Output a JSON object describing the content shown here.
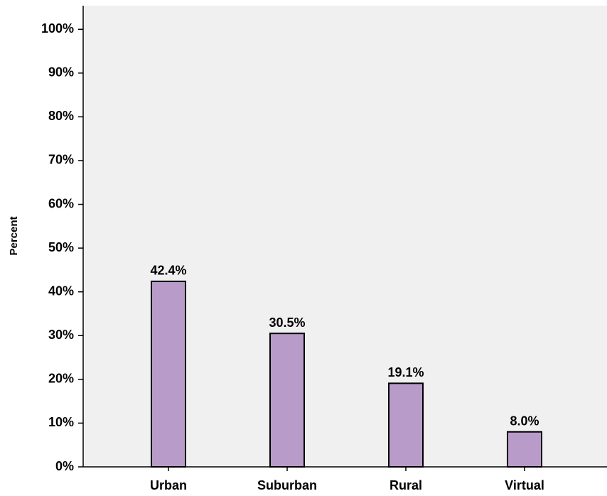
{
  "chart_data": {
    "type": "bar",
    "y_axis_label": "Percent",
    "categories": [
      "Urban",
      "Suburban",
      "Rural",
      "Virtual"
    ],
    "values": [
      42.4,
      30.5,
      19.1,
      8.0
    ],
    "value_labels": [
      "42.4%",
      "30.5%",
      "19.1%",
      "8.0%"
    ],
    "color": "#b89bc8",
    "ylim": [
      0,
      105.4
    ],
    "yticks": [
      {
        "value": 0,
        "label": "0%"
      },
      {
        "value": 10,
        "label": "10%"
      },
      {
        "value": 20,
        "label": "20%"
      },
      {
        "value": 30,
        "label": "30%"
      },
      {
        "value": 40,
        "label": "40%"
      },
      {
        "value": 50,
        "label": "50%"
      },
      {
        "value": 60,
        "label": "60%"
      },
      {
        "value": 70,
        "label": "70%"
      },
      {
        "value": 80,
        "label": "80%"
      },
      {
        "value": 90,
        "label": "90%"
      },
      {
        "value": 100,
        "label": "100%"
      }
    ]
  }
}
